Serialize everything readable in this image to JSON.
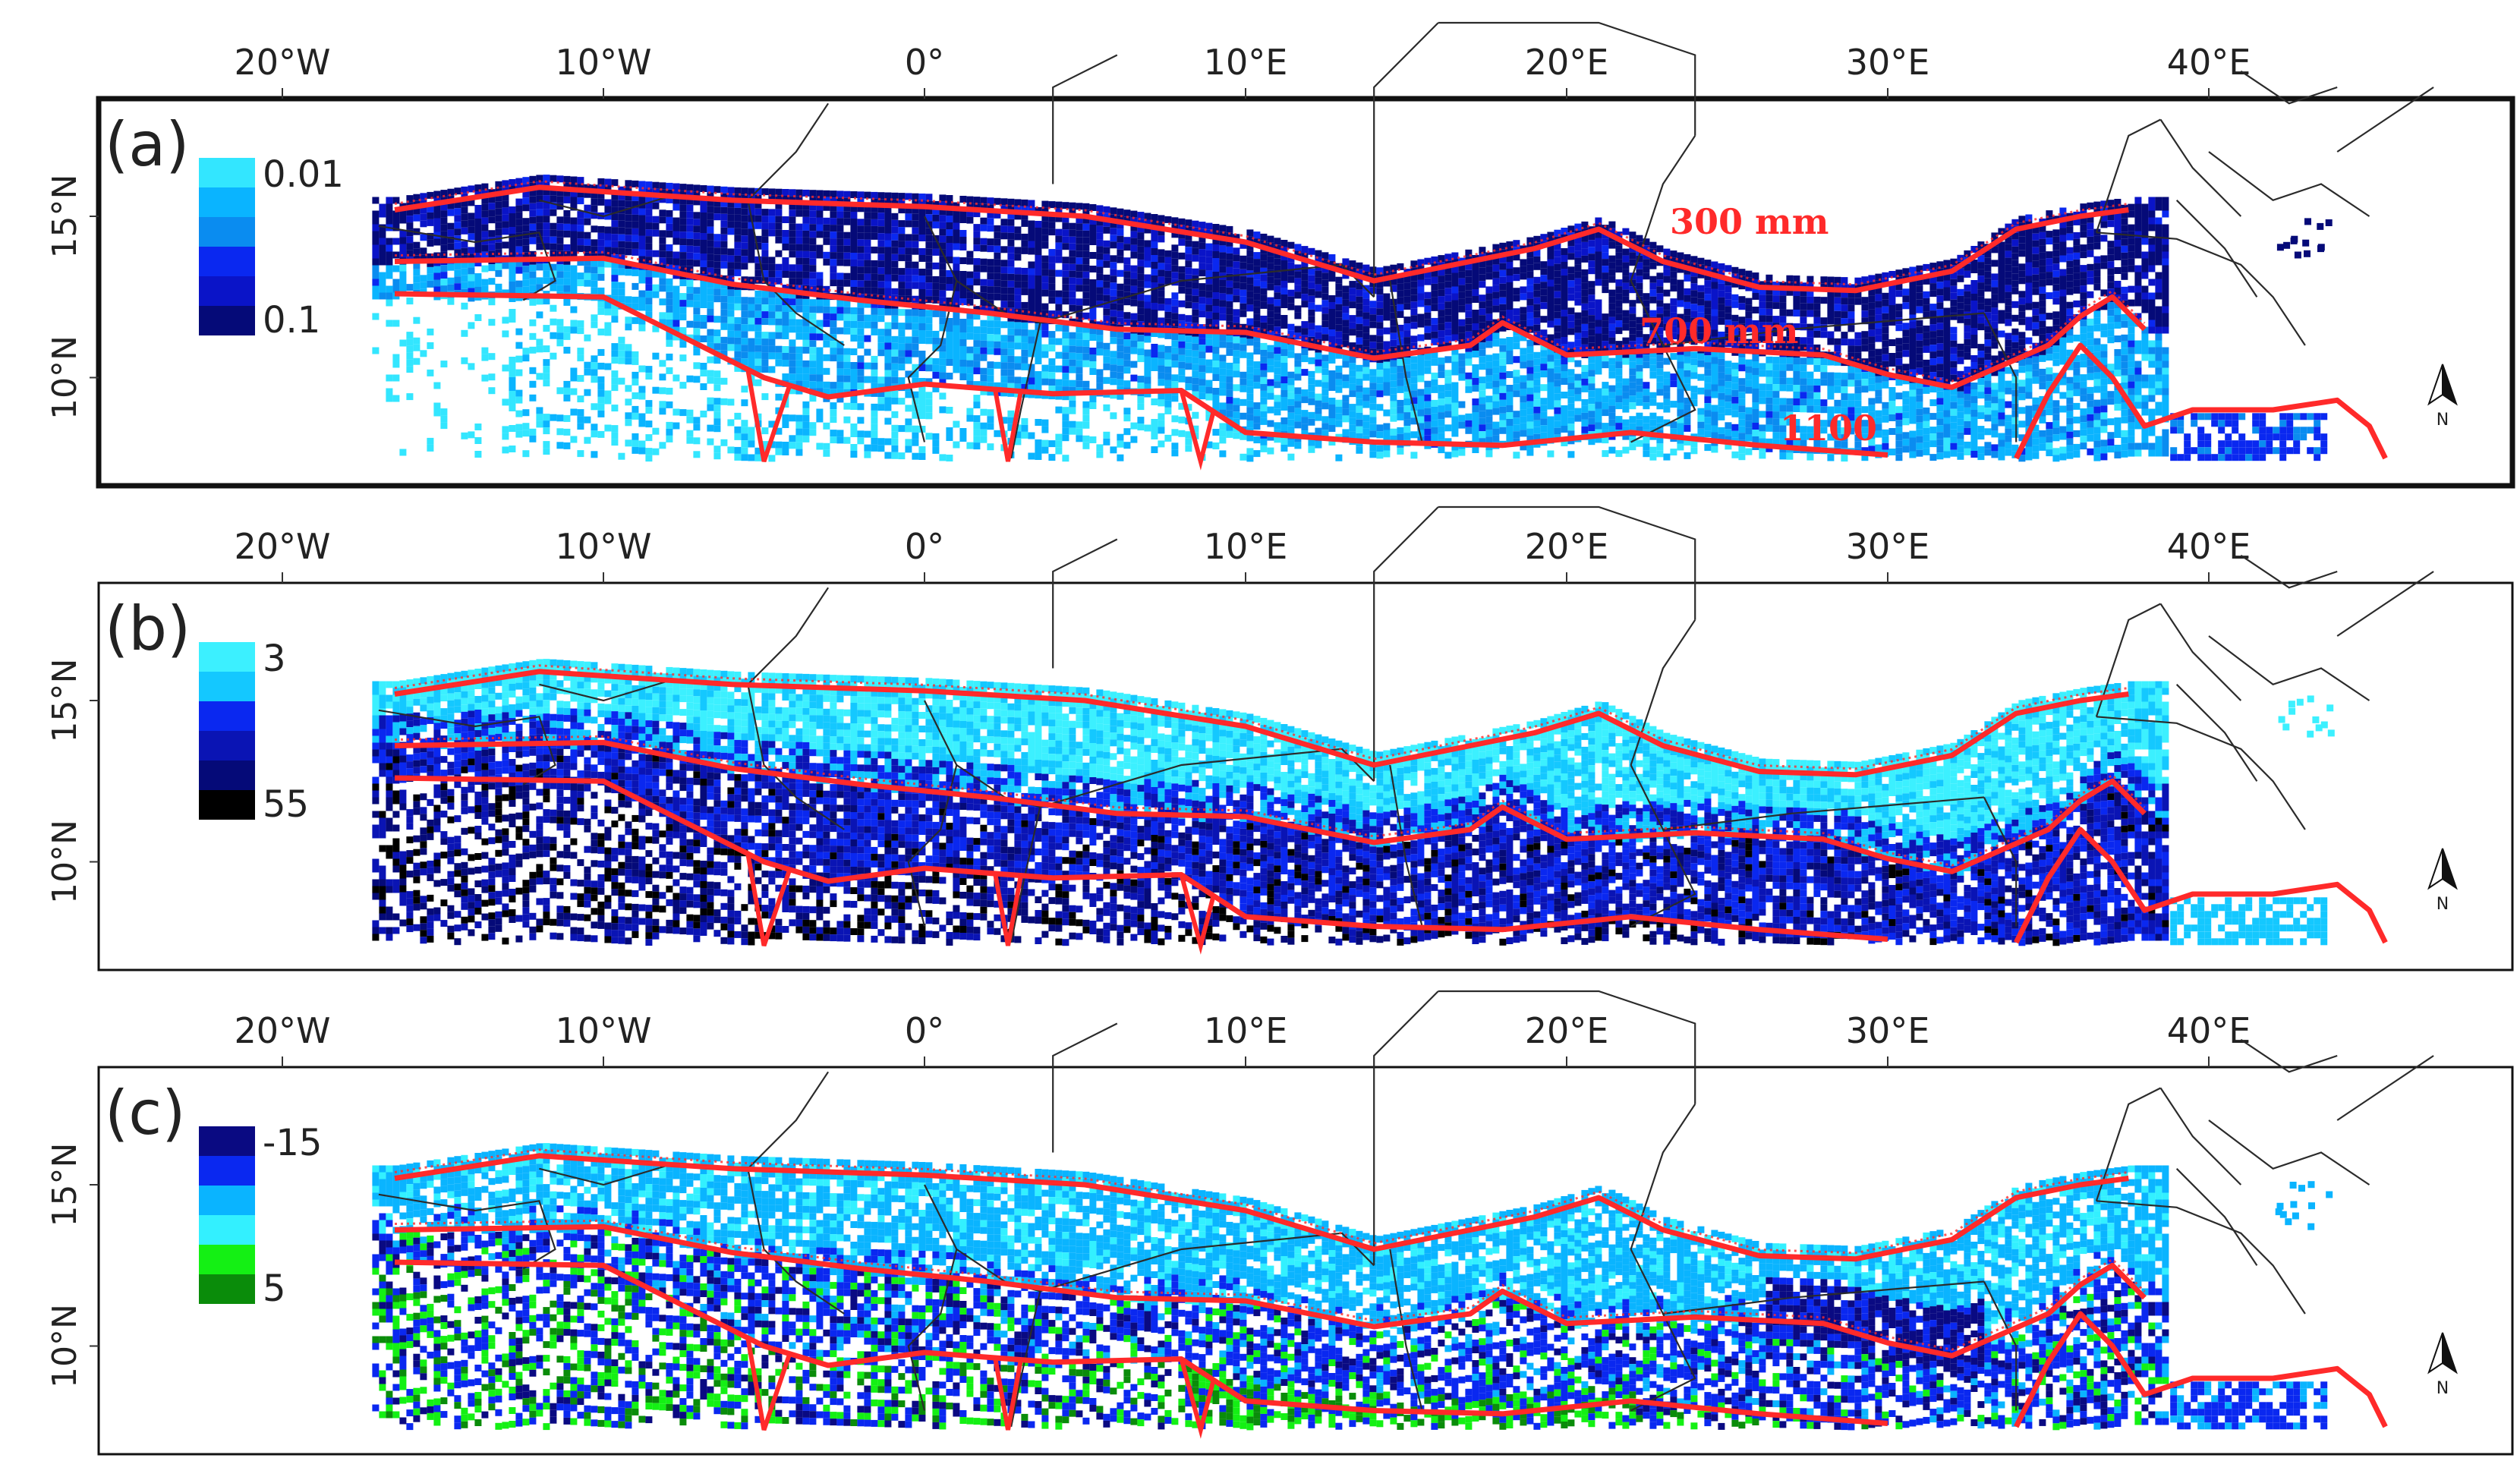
{
  "figure": {
    "lon_ticks": [
      "20°W",
      "10°W",
      "0°",
      "10°E",
      "20°E",
      "30°E",
      "40°E"
    ],
    "lat_ticks": [
      "15°N",
      "10°N"
    ],
    "north_label": "N",
    "isohyet_color": "#ff2a2a",
    "border_color": "#2b2b2b"
  },
  "panels": [
    {
      "id": "a",
      "label": "(a)",
      "legend": {
        "top_label": "0.01",
        "bottom_label": "0.1",
        "colors": [
          "#33e6ff",
          "#0ab4ff",
          "#0a8cf0",
          "#0a28f0",
          "#0a14c8",
          "#050a78"
        ]
      },
      "annotations": [
        "300 mm",
        "700 mm",
        "1100"
      ]
    },
    {
      "id": "b",
      "label": "(b)",
      "legend": {
        "top_label": "3",
        "bottom_label": "55",
        "colors": [
          "#3cf0ff",
          "#14c8ff",
          "#0a28f0",
          "#0a14b4",
          "#050a78",
          "#000000"
        ]
      },
      "annotations": []
    },
    {
      "id": "c",
      "label": "(c)",
      "legend": {
        "top_label": "-15",
        "bottom_label": "5",
        "colors": [
          "#0a0a82",
          "#0a28f0",
          "#0ab4ff",
          "#33f0ff",
          "#14f014",
          "#0a8c0a"
        ]
      },
      "annotations": []
    }
  ]
}
